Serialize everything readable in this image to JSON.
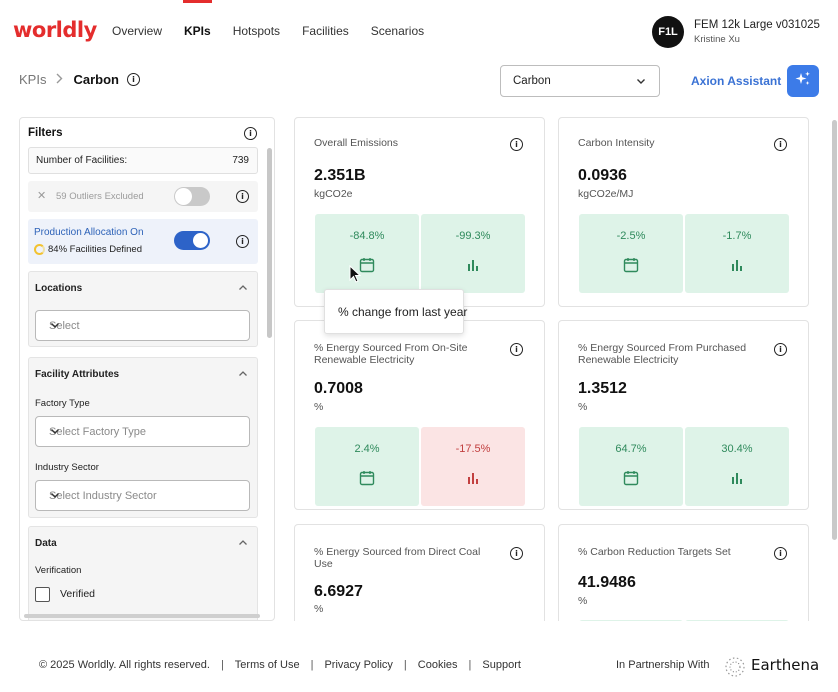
{
  "brand": {
    "logo": "worldly"
  },
  "nav": {
    "items": [
      "Overview",
      "KPIs",
      "Hotspots",
      "Facilities",
      "Scenarios"
    ],
    "active": "KPIs"
  },
  "user": {
    "initials": "F1L",
    "scenario": "FEM 12k Large v031025",
    "name": "Kristine Xu"
  },
  "breadcrumb": {
    "root": "KPIs",
    "current": "Carbon"
  },
  "metric_select": {
    "value": "Carbon"
  },
  "assistant": {
    "label": "Axion Assistant"
  },
  "filters": {
    "title": "Filters",
    "facility_count_label": "Number of Facilities:",
    "facility_count": "739",
    "outliers_label": "59 Outliers Excluded",
    "outliers_enabled": false,
    "allocation_label": "Production Allocation On",
    "allocation_sub": "84% Facilities Defined",
    "allocation_enabled": true,
    "locations": {
      "title": "Locations",
      "placeholder": "Select"
    },
    "facility_attributes": {
      "title": "Facility Attributes",
      "factory_type_label": "Factory Type",
      "factory_type_placeholder": "Select Factory Type",
      "industry_sector_label": "Industry Sector",
      "industry_sector_placeholder": "Select Industry Sector"
    },
    "data": {
      "title": "Data",
      "verification_label": "Verification",
      "verified_label": "Verified",
      "verified_checked": false
    }
  },
  "kpis": [
    {
      "title": "Overall Emissions",
      "value": "2.351B",
      "unit": "kgCO2e",
      "yoy": "-84.8%",
      "yoy_positive": true,
      "bench": "-99.3%",
      "bench_positive": true
    },
    {
      "title": "Carbon Intensity",
      "value": "0.0936",
      "unit": "kgCO2e/MJ",
      "yoy": "-2.5%",
      "yoy_positive": true,
      "bench": "-1.7%",
      "bench_positive": true
    },
    {
      "title": "% Energy Sourced From On-Site Renewable Electricity",
      "value": "0.7008",
      "unit": "%",
      "yoy": "2.4%",
      "yoy_positive": true,
      "bench": "-17.5%",
      "bench_positive": false
    },
    {
      "title": "% Energy Sourced From Purchased Renewable Electricity",
      "value": "1.3512",
      "unit": "%",
      "yoy": "64.7%",
      "yoy_positive": true,
      "bench": "30.4%",
      "bench_positive": true
    },
    {
      "title": "% Energy Sourced from Direct Coal Use",
      "value": "6.6927",
      "unit": "%"
    },
    {
      "title": "% Carbon Reduction Targets Set",
      "value": "41.9486",
      "unit": "%"
    }
  ],
  "tooltip": {
    "text": "% change from last year"
  },
  "footer": {
    "copyright": "© 2025 Worldly. All rights reserved.",
    "links": [
      "Terms of Use",
      "Privacy Policy",
      "Cookies",
      "Support"
    ],
    "partner_label": "In Partnership With",
    "partner_name": "Earthena"
  },
  "colors": {
    "brand_red": "#e42d2d",
    "accent_blue": "#3c7be8",
    "positive_bg": "#def3e8",
    "negative_bg": "#fbe4e4"
  }
}
